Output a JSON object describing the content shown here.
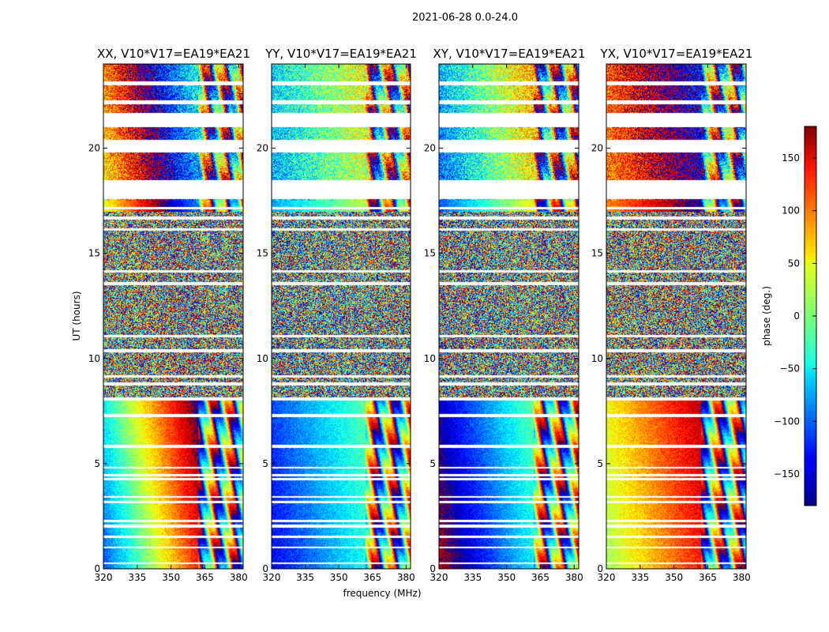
{
  "chart_data": {
    "type": "heatmap",
    "title": "2021-06-28 0.0-24.0",
    "xlabel": "frequency (MHz)",
    "ylabel": "UT (hours)",
    "xlim": [
      320,
      382
    ],
    "ylim": [
      0,
      24
    ],
    "x_ticks": [
      "320",
      "335",
      "350",
      "365",
      "380"
    ],
    "x_tick_values": [
      320,
      335,
      350,
      365,
      380
    ],
    "y_ticks": [
      "0",
      "5",
      "10",
      "15",
      "20"
    ],
    "y_tick_values": [
      0,
      5,
      10,
      15,
      20
    ],
    "colorbar": {
      "label": "phase (deg.)",
      "range": [
        -180,
        180
      ],
      "ticks": [
        "150",
        "100",
        "50",
        "0",
        "−50",
        "−100",
        "−150"
      ],
      "tick_values": [
        150,
        100,
        50,
        0,
        -50,
        -100,
        -150
      ],
      "colormap": "jet"
    },
    "panels": [
      {
        "title": "XX, V10*V17=EA19*EA21",
        "phase_slope": 14,
        "phase_offset": -110
      },
      {
        "title": "YY, V10*V17=EA19*EA21",
        "phase_slope": 6,
        "phase_offset": -140
      },
      {
        "title": "XY, V10*V17=EA19*EA21",
        "phase_slope": 9,
        "phase_offset": 160
      },
      {
        "title": "YX, V10*V17=EA19*EA21",
        "phase_slope": 7,
        "phase_offset": 10
      }
    ],
    "flagged_ranges_hours": [
      [
        0.2,
        0.3
      ],
      [
        0.95,
        1.05
      ],
      [
        1.45,
        1.55
      ],
      [
        1.95,
        2.1
      ],
      [
        2.2,
        2.3
      ],
      [
        3.1,
        3.2
      ],
      [
        3.35,
        3.45
      ],
      [
        4.2,
        4.3
      ],
      [
        4.4,
        4.5
      ],
      [
        4.75,
        4.85
      ],
      [
        5.75,
        5.9
      ],
      [
        7.2,
        7.35
      ],
      [
        8.0,
        8.15
      ],
      [
        8.7,
        8.85
      ],
      [
        9.1,
        9.2
      ],
      [
        10.3,
        10.45
      ],
      [
        11.0,
        11.1
      ],
      [
        13.5,
        13.65
      ],
      [
        14.1,
        14.2
      ],
      [
        16.1,
        16.2
      ],
      [
        16.6,
        16.75
      ],
      [
        17.1,
        17.2
      ],
      [
        17.6,
        18.5
      ],
      [
        19.8,
        20.4
      ],
      [
        21.0,
        21.7
      ],
      [
        22.1,
        22.3
      ],
      [
        23.0,
        23.2
      ]
    ]
  }
}
